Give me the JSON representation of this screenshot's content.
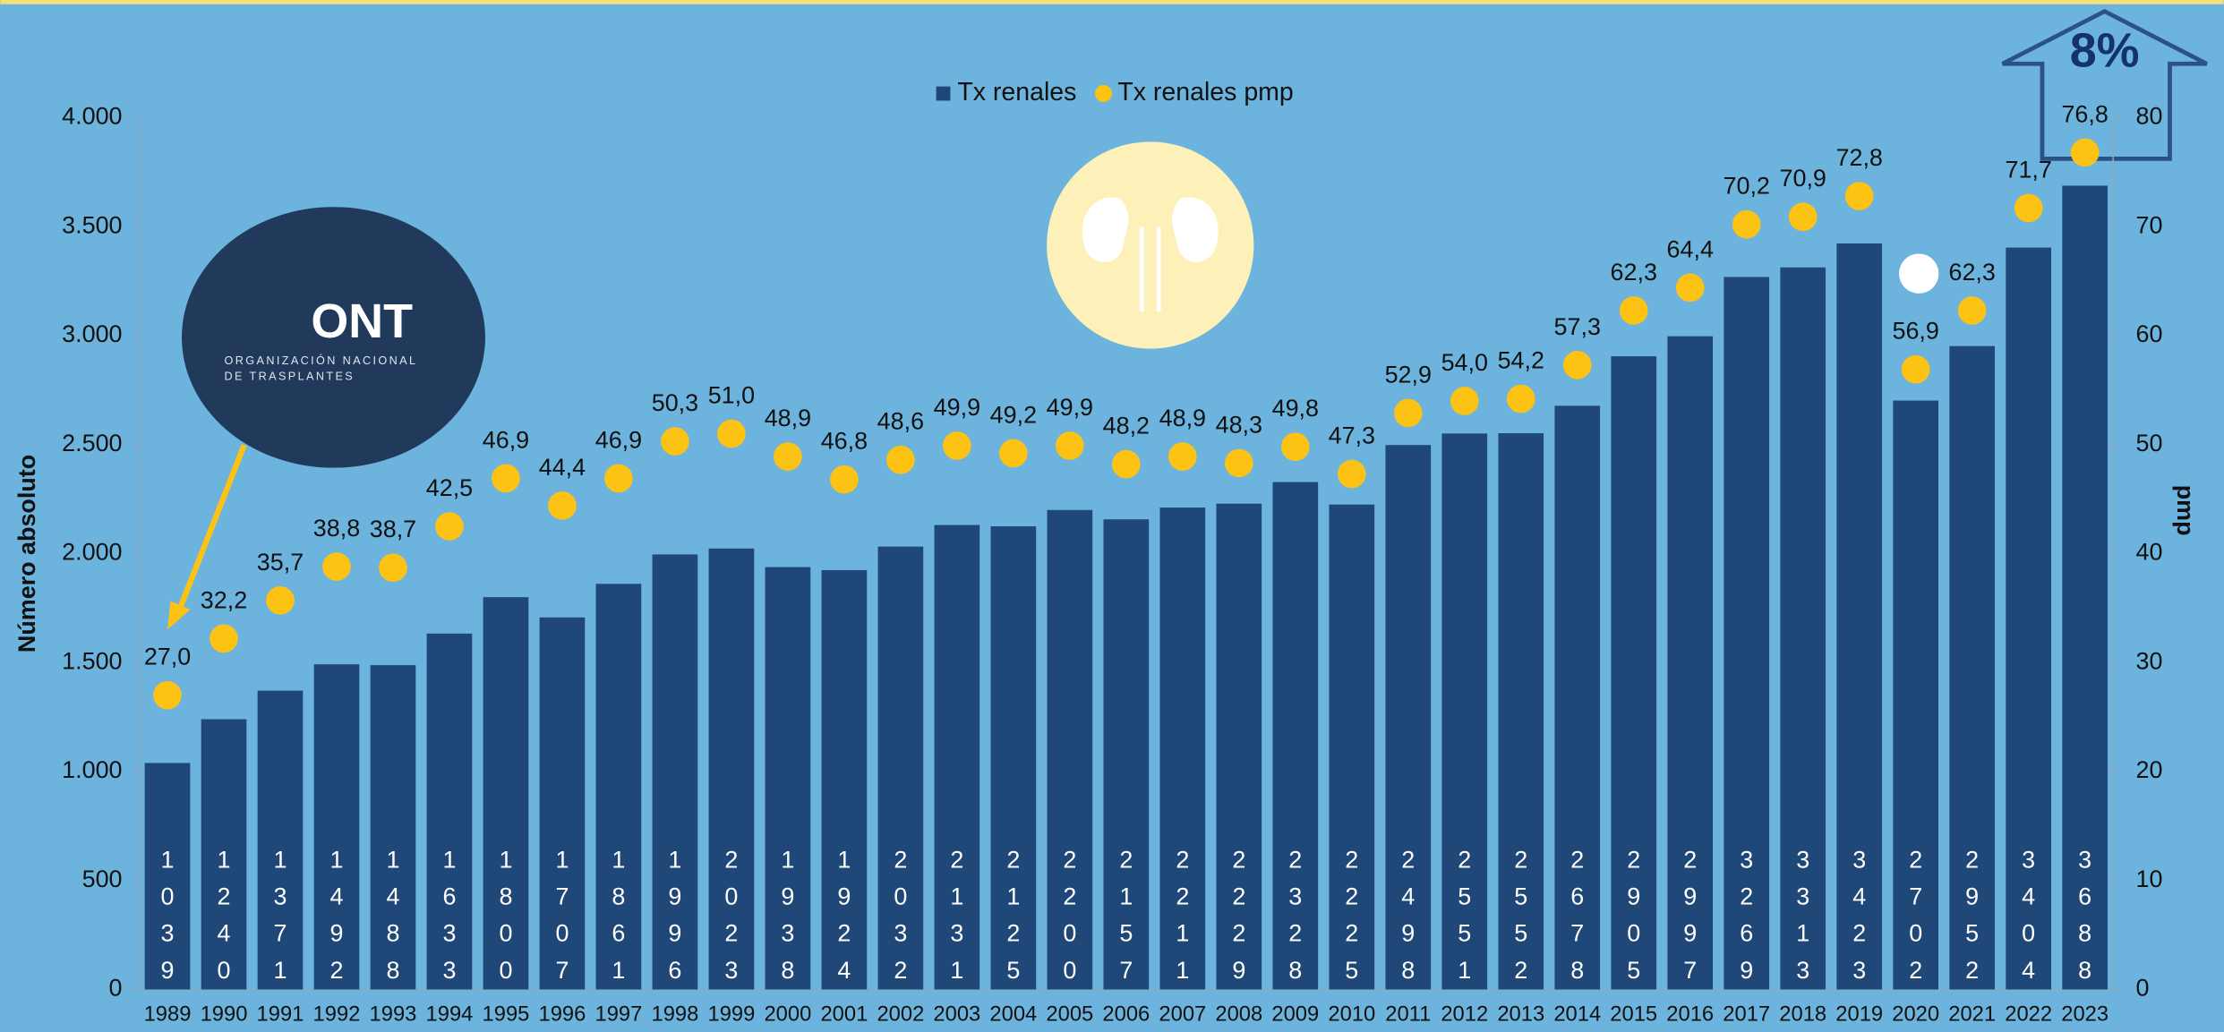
{
  "chart_data": {
    "type": "bar",
    "categories": [
      "1989",
      "1990",
      "1991",
      "1992",
      "1993",
      "1994",
      "1995",
      "1996",
      "1997",
      "1998",
      "1999",
      "2000",
      "2001",
      "2002",
      "2003",
      "2004",
      "2005",
      "2006",
      "2007",
      "2008",
      "2009",
      "2010",
      "2011",
      "2012",
      "2013",
      "2014",
      "2015",
      "2016",
      "2017",
      "2018",
      "2019",
      "2020",
      "2021",
      "2022",
      "2023"
    ],
    "series": [
      {
        "name": "Tx renales",
        "type": "bar",
        "color": "#1f4778",
        "values": [
          1039,
          1240,
          1371,
          1492,
          1488,
          1633,
          1800,
          1707,
          1861,
          1996,
          2023,
          1938,
          1924,
          2032,
          2131,
          2125,
          2200,
          2157,
          2211,
          2229,
          2328,
          2225,
          2498,
          2551,
          2552,
          2678,
          2905,
          2997,
          3269,
          3313,
          3423,
          2702,
          2952,
          3404,
          3688
        ]
      },
      {
        "name": "Tx renales pmp",
        "type": "scatter",
        "axis": "y2",
        "color": "#fcc314",
        "values": [
          27.0,
          32.2,
          35.7,
          38.8,
          38.7,
          42.5,
          46.9,
          44.4,
          46.9,
          50.3,
          51.0,
          48.9,
          46.8,
          48.6,
          49.9,
          49.2,
          49.9,
          48.2,
          48.9,
          48.3,
          49.8,
          47.3,
          52.9,
          54.0,
          54.2,
          57.3,
          62.3,
          64.4,
          70.2,
          70.9,
          72.8,
          56.9,
          62.3,
          71.7,
          76.8
        ],
        "value_labels": [
          "27,0",
          "32,2",
          "35,7",
          "38,8",
          "38,7",
          "42,5",
          "46,9",
          "44,4",
          "46,9",
          "50,3",
          "51,0",
          "48,9",
          "46,8",
          "48,6",
          "49,9",
          "49,2",
          "49,9",
          "48,2",
          "48,9",
          "48,3",
          "49,8",
          "47,3",
          "52,9",
          "54,0",
          "54,2",
          "57,3",
          "62,3",
          "64,4",
          "70,2",
          "70,9",
          "72,8",
          "56,9",
          "62,3",
          "71,7",
          "76,8"
        ]
      }
    ],
    "y_label": "Número absoluto",
    "y2_label": "pmp",
    "ylim": [
      0,
      4000
    ],
    "yticks": [
      0,
      500,
      {
        "value": 1000,
        "label": "1.000"
      },
      {
        "value": 1500,
        "label": "1.500"
      },
      {
        "value": 2000,
        "label": "2.000"
      },
      {
        "value": 2500,
        "label": "2.500"
      },
      {
        "value": 3000,
        "label": "3.000"
      },
      {
        "value": 3500,
        "label": "3.500"
      },
      {
        "value": 4000,
        "label": "4.000"
      }
    ],
    "y2lim": [
      0,
      80
    ],
    "y2ticks": [
      0,
      10,
      20,
      30,
      40,
      50,
      60,
      70,
      80
    ],
    "legend": "top",
    "annotation": "8%",
    "logo_text": "ONT",
    "logo_subtitle": [
      "ORGANIZACIÓN NACIONAL",
      "DE TRASPLANTES"
    ]
  }
}
